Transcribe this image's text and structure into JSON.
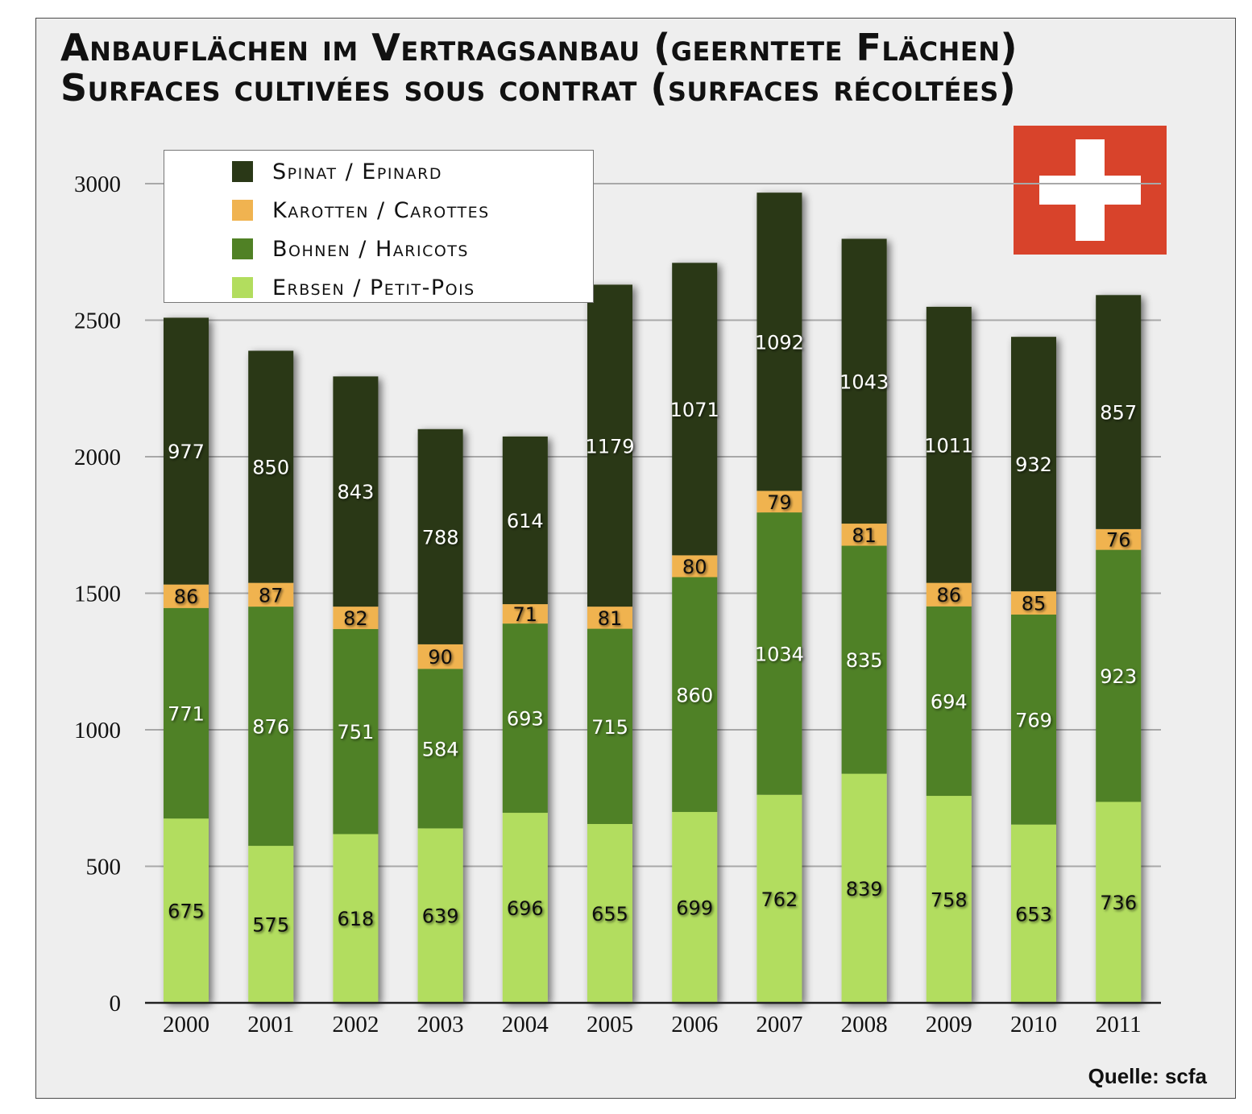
{
  "title": {
    "line1": "Anbauflächen im Vertragsanbau (geerntete Flächen)",
    "line2": "Surfaces cultivées sous contrat (surfaces récoltées)"
  },
  "source": "Quelle: scfa",
  "flag": "swiss-flag",
  "chart_data": {
    "type": "bar",
    "stacked": true,
    "categories": [
      "2000",
      "2001",
      "2002",
      "2003",
      "2004",
      "2005",
      "2006",
      "2007",
      "2008",
      "2009",
      "2010",
      "2011"
    ],
    "series": [
      {
        "name": "Erbsen / Petit-Pois",
        "color": "#b2dd5e",
        "label_color": "#111111",
        "values": [
          675,
          575,
          618,
          639,
          696,
          655,
          699,
          762,
          839,
          758,
          653,
          736
        ]
      },
      {
        "name": "Bohnen / Haricots",
        "color": "#508125",
        "label_color": "#ffffff",
        "values": [
          771,
          876,
          751,
          584,
          693,
          715,
          860,
          1034,
          835,
          694,
          769,
          923
        ]
      },
      {
        "name": "Karotten / Carottes",
        "color": "#f0b350",
        "label_color": "#111111",
        "values": [
          86,
          87,
          82,
          90,
          71,
          81,
          80,
          79,
          81,
          86,
          85,
          76
        ]
      },
      {
        "name": "Spinat / Epinard",
        "color": "#2a3817",
        "label_color": "#ffffff",
        "values": [
          977,
          850,
          843,
          788,
          614,
          1179,
          1071,
          1092,
          1043,
          1011,
          932,
          857
        ]
      }
    ],
    "legend_order": [
      "Spinat / Epinard",
      "Karotten / Carottes",
      "Bohnen / Haricots",
      "Erbsen / Petit-Pois"
    ],
    "ylim": [
      0,
      3000
    ],
    "yticks": [
      0,
      500,
      1000,
      1500,
      2000,
      2500,
      3000
    ],
    "grid": true,
    "legend_position": "top-left"
  }
}
